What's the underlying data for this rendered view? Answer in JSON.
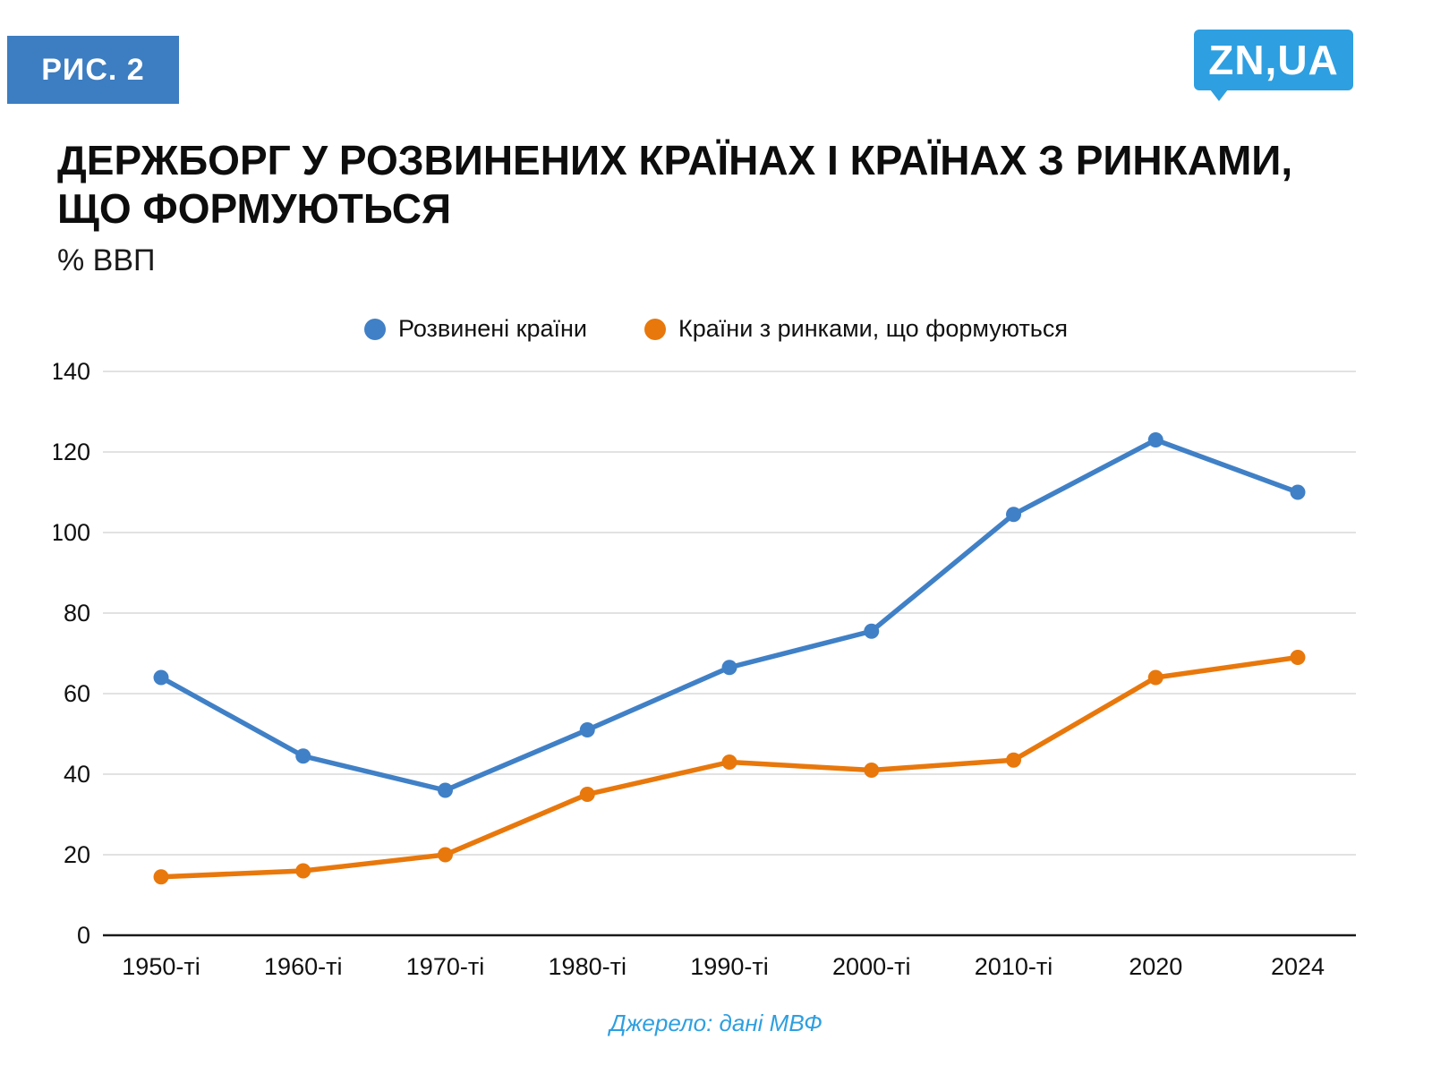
{
  "badge": {
    "label": "РИС. 2"
  },
  "logo": {
    "text": "ZN,UA"
  },
  "header": {
    "title": "Держборг у розвинених країнах і країнах з ринками, що формуються",
    "subtitle": "% ВВП"
  },
  "source": "Джерело: дані МВФ",
  "colors": {
    "badge_blue": "#3d7dc1",
    "logo_blue": "#2e9fe0",
    "line_blue": "#4080c6",
    "line_orange": "#e8780c",
    "grid_gray": "#d9d9d9",
    "axis_black": "#1a1a1a",
    "source_blue": "#2e9fe0"
  },
  "chart_data": {
    "type": "line",
    "categories": [
      "1950-ті",
      "1960-ті",
      "1970-ті",
      "1980-ті",
      "1990-ті",
      "2000-ті",
      "2010-ті",
      "2020",
      "2024"
    ],
    "series": [
      {
        "name": "Розвинені країни",
        "color": "#4080c6",
        "values": [
          64,
          44.5,
          36,
          51,
          66.5,
          75.5,
          104.5,
          123,
          110
        ]
      },
      {
        "name": "Країни з ринками, що формуються",
        "color": "#e8780c",
        "values": [
          14.5,
          16,
          20,
          35,
          43,
          41,
          43.5,
          64,
          69
        ]
      }
    ],
    "title": "Держборг у розвинених країнах і країнах з ринками, що формуються",
    "xlabel": "",
    "ylabel": "% ВВП",
    "ylim": [
      0,
      140
    ],
    "ytick_step": 20,
    "grid": true,
    "legend_position": "top"
  }
}
